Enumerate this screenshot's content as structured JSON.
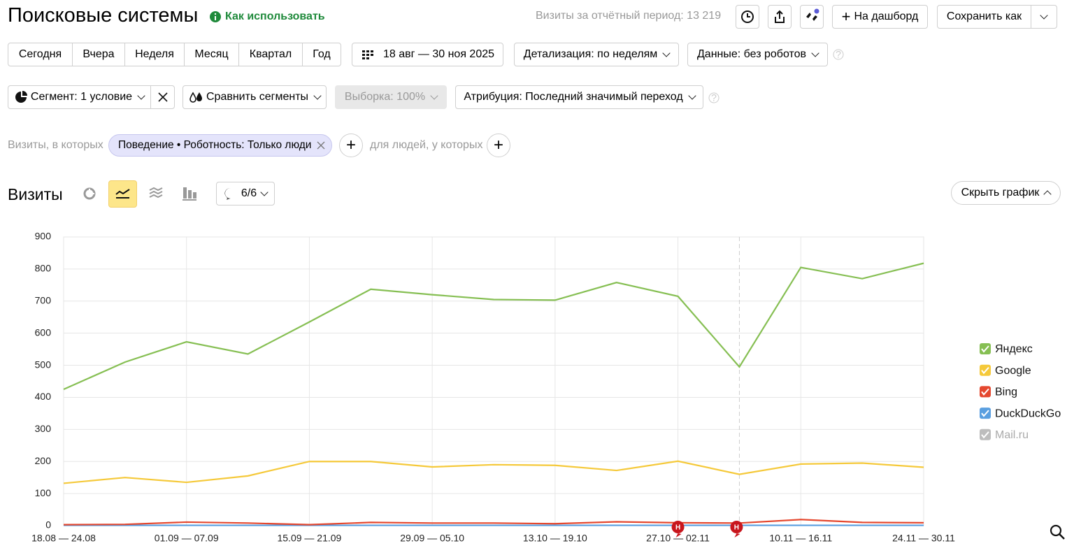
{
  "header": {
    "title": "Поисковые системы",
    "help_link": "Как использовать",
    "visits_total": "Визиты за отчётный период: 13 219",
    "dashboard_button": "На дашборд",
    "save_button": "Сохранить как"
  },
  "period": {
    "buttons": [
      "Сегодня",
      "Вчера",
      "Неделя",
      "Месяц",
      "Квартал",
      "Год"
    ],
    "date_range": "18 авг — 30 ноя 2025",
    "detail": "Детализация: по неделям",
    "data_filter": "Данные: без роботов"
  },
  "segment": {
    "segment": "Сегмент: 1 условие",
    "compare": "Сравнить сегменты",
    "sample": "Выборка: 100%",
    "attribution": "Атрибуция: Последний значимый переход"
  },
  "filter": {
    "prefix": "Визиты, в которых",
    "chip": "Поведение • Роботность: Только люди",
    "people": "для людей, у которых"
  },
  "chart_header": {
    "title": "Визиты",
    "annotations_button": "6/6",
    "hide_button": "Скрыть график"
  },
  "chart_data": {
    "type": "line",
    "categories": [
      "18.08 — 24.08",
      null,
      "01.09 — 07.09",
      null,
      "15.09 — 21.09",
      null,
      "29.09 — 05.10",
      null,
      "13.10 — 19.10",
      null,
      "27.10 — 02.11",
      null,
      "10.11 — 16.11",
      null,
      "24.11 — 30.11"
    ],
    "series": [
      {
        "name": "Яндекс",
        "color": "#86bf53",
        "values": [
          425,
          510,
          573,
          535,
          635,
          737,
          720,
          705,
          703,
          758,
          715,
          495,
          805,
          770,
          818
        ]
      },
      {
        "name": "Google",
        "color": "#f5c93a",
        "values": [
          132,
          150,
          135,
          155,
          200,
          200,
          183,
          190,
          188,
          172,
          201,
          160,
          192,
          195,
          182
        ]
      },
      {
        "name": "Bing",
        "color": "#e5482f",
        "values": [
          3,
          4,
          11,
          8,
          3,
          10,
          8,
          8,
          6,
          12,
          9,
          8,
          19,
          10,
          9
        ]
      },
      {
        "name": "DuckDuckGo",
        "color": "#5a9fe0",
        "values": [
          1,
          1,
          1,
          1,
          1,
          1,
          1,
          1,
          1,
          1,
          1,
          1,
          1,
          1,
          1
        ]
      },
      {
        "name": "Mail.ru",
        "color": "#bdbdbd",
        "visible": false
      }
    ],
    "annotations": [
      {
        "index": 10,
        "label": "Н"
      },
      {
        "index": 11,
        "label": "Н",
        "line": true
      }
    ],
    "ylim": [
      0,
      900
    ],
    "yticks": [
      0,
      100,
      200,
      300,
      400,
      500,
      600,
      700,
      800,
      900
    ],
    "grid": true
  }
}
